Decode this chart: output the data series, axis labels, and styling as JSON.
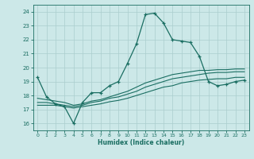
{
  "xlabel": "Humidex (Indice chaleur)",
  "ylabel": "",
  "background_color": "#cce8e8",
  "grid_color": "#aacece",
  "line_color": "#1a6e62",
  "xlim": [
    -0.5,
    23.5
  ],
  "ylim": [
    15.5,
    24.5
  ],
  "yticks": [
    16,
    17,
    18,
    19,
    20,
    21,
    22,
    23,
    24
  ],
  "xticks": [
    0,
    1,
    2,
    3,
    4,
    5,
    6,
    7,
    8,
    9,
    10,
    11,
    12,
    13,
    14,
    15,
    16,
    17,
    18,
    19,
    20,
    21,
    22,
    23
  ],
  "line1_x": [
    0,
    1,
    2,
    3,
    4,
    5,
    6,
    7,
    8,
    9,
    10,
    11,
    12,
    13,
    14,
    15,
    16,
    17,
    18,
    19,
    20,
    21,
    22,
    23
  ],
  "line1_y": [
    19.3,
    17.9,
    17.4,
    17.2,
    16.0,
    17.5,
    18.2,
    18.2,
    18.7,
    19.0,
    20.3,
    21.7,
    23.8,
    23.9,
    23.2,
    22.0,
    21.9,
    21.8,
    20.8,
    19.0,
    18.7,
    18.8,
    19.0,
    19.1
  ],
  "line2_x": [
    0,
    1,
    2,
    3,
    4,
    5,
    6,
    7,
    8,
    9,
    10,
    11,
    12,
    13,
    14,
    15,
    16,
    17,
    18,
    19,
    20,
    21,
    22,
    23
  ],
  "line2_y": [
    17.8,
    17.7,
    17.6,
    17.5,
    17.3,
    17.4,
    17.6,
    17.7,
    17.9,
    18.1,
    18.3,
    18.6,
    18.9,
    19.1,
    19.3,
    19.5,
    19.6,
    19.7,
    19.8,
    19.8,
    19.85,
    19.85,
    19.9,
    19.9
  ],
  "line3_x": [
    0,
    1,
    2,
    3,
    4,
    5,
    6,
    7,
    8,
    9,
    10,
    11,
    12,
    13,
    14,
    15,
    16,
    17,
    18,
    19,
    20,
    21,
    22,
    23
  ],
  "line3_y": [
    17.5,
    17.5,
    17.4,
    17.3,
    17.2,
    17.3,
    17.5,
    17.6,
    17.8,
    17.9,
    18.1,
    18.3,
    18.6,
    18.8,
    19.0,
    19.2,
    19.3,
    19.4,
    19.5,
    19.6,
    19.65,
    19.65,
    19.7,
    19.7
  ],
  "line4_x": [
    0,
    1,
    2,
    3,
    4,
    5,
    6,
    7,
    8,
    9,
    10,
    11,
    12,
    13,
    14,
    15,
    16,
    17,
    18,
    19,
    20,
    21,
    22,
    23
  ],
  "line4_y": [
    17.3,
    17.3,
    17.3,
    17.2,
    17.1,
    17.2,
    17.3,
    17.4,
    17.55,
    17.65,
    17.8,
    18.0,
    18.2,
    18.4,
    18.6,
    18.7,
    18.9,
    19.0,
    19.1,
    19.15,
    19.2,
    19.2,
    19.3,
    19.3
  ]
}
